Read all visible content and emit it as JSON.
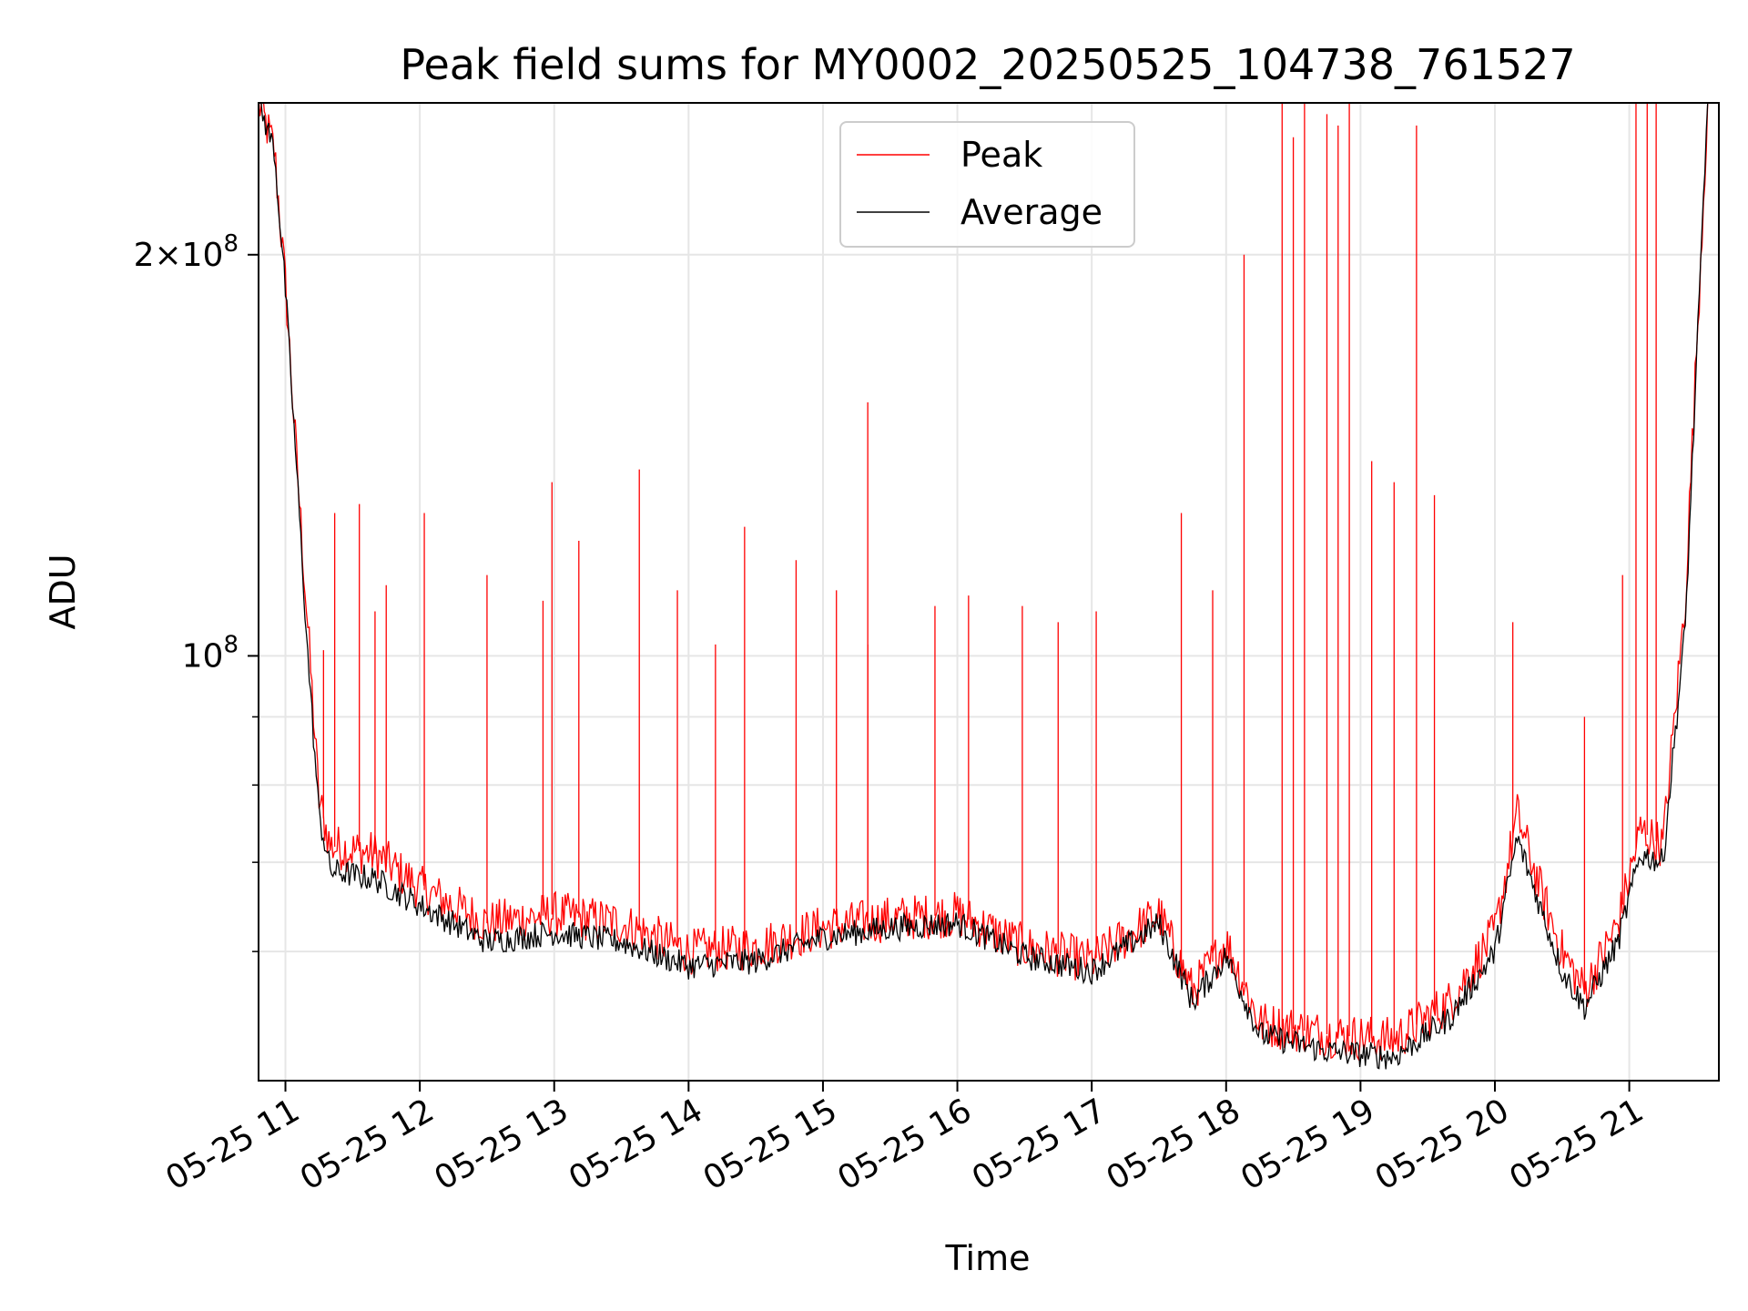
{
  "chart_data": {
    "type": "line",
    "title": "Peak field sums for MY0002_20250525_104738_761527",
    "xlabel": "Time",
    "ylabel": "ADU",
    "y_scale": "log",
    "ylim": [
      48000000,
      260000000
    ],
    "xlim": [
      "2025-05-25 10:48",
      "2025-05-25 21:40"
    ],
    "grid": true,
    "legend_position": "top-center",
    "x_ticks": [
      {
        "value": "2025-05-25 11:00",
        "label": "05-25 11"
      },
      {
        "value": "2025-05-25 12:00",
        "label": "05-25 12"
      },
      {
        "value": "2025-05-25 13:00",
        "label": "05-25 13"
      },
      {
        "value": "2025-05-25 14:00",
        "label": "05-25 14"
      },
      {
        "value": "2025-05-25 15:00",
        "label": "05-25 15"
      },
      {
        "value": "2025-05-25 16:00",
        "label": "05-25 16"
      },
      {
        "value": "2025-05-25 17:00",
        "label": "05-25 17"
      },
      {
        "value": "2025-05-25 18:00",
        "label": "05-25 18"
      },
      {
        "value": "2025-05-25 19:00",
        "label": "05-25 19"
      },
      {
        "value": "2025-05-25 20:00",
        "label": "05-25 20"
      },
      {
        "value": "2025-05-25 21:00",
        "label": "05-25 21"
      }
    ],
    "y_major_ticks": [
      {
        "value": 100000000,
        "mantissa": "",
        "exponent": "8"
      },
      {
        "value": 200000000,
        "mantissa": "2",
        "exponent": "8"
      }
    ],
    "y_minor_ticks": [
      60000000,
      70000000,
      80000000,
      90000000
    ],
    "series": [
      {
        "name": "Peak",
        "color": "#ff0000",
        "points": [
          [
            "2025-05-25 10:48",
            260000000
          ],
          [
            "2025-05-25 10:55",
            240000000
          ],
          [
            "2025-05-25 11:00",
            190000000
          ],
          [
            "2025-05-25 11:05",
            140000000
          ],
          [
            "2025-05-25 11:10",
            105000000
          ],
          [
            "2025-05-25 11:15",
            78000000
          ],
          [
            "2025-05-25 11:20",
            72000000
          ],
          [
            "2025-05-25 11:40",
            71000000
          ],
          [
            "2025-05-25 12:00",
            67000000
          ],
          [
            "2025-05-25 12:30",
            63000000
          ],
          [
            "2025-05-25 13:00",
            64000000
          ],
          [
            "2025-05-25 13:30",
            63000000
          ],
          [
            "2025-05-25 14:00",
            60000000
          ],
          [
            "2025-05-25 14:30",
            60500000
          ],
          [
            "2025-05-25 15:00",
            62500000
          ],
          [
            "2025-05-25 15:30",
            63500000
          ],
          [
            "2025-05-25 16:00",
            64000000
          ],
          [
            "2025-05-25 16:30",
            60500000
          ],
          [
            "2025-05-25 17:00",
            59000000
          ],
          [
            "2025-05-25 17:30",
            64000000
          ],
          [
            "2025-05-25 17:45",
            56000000
          ],
          [
            "2025-05-25 18:00",
            61000000
          ],
          [
            "2025-05-25 18:15",
            53000000
          ],
          [
            "2025-05-25 18:45",
            52000000
          ],
          [
            "2025-05-25 19:15",
            51500000
          ],
          [
            "2025-05-25 19:40",
            55000000
          ],
          [
            "2025-05-25 20:00",
            62000000
          ],
          [
            "2025-05-25 20:10",
            76000000
          ],
          [
            "2025-05-25 20:20",
            67000000
          ],
          [
            "2025-05-25 20:30",
            60000000
          ],
          [
            "2025-05-25 20:40",
            56000000
          ],
          [
            "2025-05-25 20:55",
            63000000
          ],
          [
            "2025-05-25 21:05",
            74000000
          ],
          [
            "2025-05-25 21:15",
            72000000
          ],
          [
            "2025-05-25 21:25",
            110000000
          ],
          [
            "2025-05-25 21:35",
            260000000
          ]
        ]
      },
      {
        "name": "Average",
        "color": "#000000",
        "points": [
          [
            "2025-05-25 10:48",
            260000000
          ],
          [
            "2025-05-25 10:55",
            240000000
          ],
          [
            "2025-05-25 11:00",
            188000000
          ],
          [
            "2025-05-25 11:05",
            138000000
          ],
          [
            "2025-05-25 11:10",
            100000000
          ],
          [
            "2025-05-25 11:15",
            76000000
          ],
          [
            "2025-05-25 11:20",
            69000000
          ],
          [
            "2025-05-25 11:40",
            68000000
          ],
          [
            "2025-05-25 12:00",
            65000000
          ],
          [
            "2025-05-25 12:30",
            61000000
          ],
          [
            "2025-05-25 13:00",
            62000000
          ],
          [
            "2025-05-25 13:30",
            61000000
          ],
          [
            "2025-05-25 14:00",
            58500000
          ],
          [
            "2025-05-25 14:30",
            59000000
          ],
          [
            "2025-05-25 15:00",
            61500000
          ],
          [
            "2025-05-25 15:30",
            62500000
          ],
          [
            "2025-05-25 16:00",
            63000000
          ],
          [
            "2025-05-25 16:30",
            59500000
          ],
          [
            "2025-05-25 17:00",
            58000000
          ],
          [
            "2025-05-25 17:30",
            63000000
          ],
          [
            "2025-05-25 17:45",
            55000000
          ],
          [
            "2025-05-25 18:00",
            59500000
          ],
          [
            "2025-05-25 18:15",
            52000000
          ],
          [
            "2025-05-25 18:45",
            50500000
          ],
          [
            "2025-05-25 19:15",
            50000000
          ],
          [
            "2025-05-25 19:40",
            53500000
          ],
          [
            "2025-05-25 20:00",
            60000000
          ],
          [
            "2025-05-25 20:10",
            73000000
          ],
          [
            "2025-05-25 20:20",
            65000000
          ],
          [
            "2025-05-25 20:30",
            58000000
          ],
          [
            "2025-05-25 20:40",
            54500000
          ],
          [
            "2025-05-25 20:55",
            61000000
          ],
          [
            "2025-05-25 21:05",
            71000000
          ],
          [
            "2025-05-25 21:15",
            70000000
          ],
          [
            "2025-05-25 21:25",
            105000000
          ],
          [
            "2025-05-25 21:35",
            260000000
          ]
        ]
      }
    ],
    "peak_spikes": [
      [
        "2025-05-25 11:17",
        101000000
      ],
      [
        "2025-05-25 11:22",
        128000000
      ],
      [
        "2025-05-25 11:33",
        130000000
      ],
      [
        "2025-05-25 11:40",
        108000000
      ],
      [
        "2025-05-25 11:45",
        113000000
      ],
      [
        "2025-05-25 12:02",
        128000000
      ],
      [
        "2025-05-25 12:30",
        115000000
      ],
      [
        "2025-05-25 12:55",
        110000000
      ],
      [
        "2025-05-25 12:59",
        135000000
      ],
      [
        "2025-05-25 13:11",
        122000000
      ],
      [
        "2025-05-25 13:38",
        138000000
      ],
      [
        "2025-05-25 13:55",
        112000000
      ],
      [
        "2025-05-25 14:12",
        102000000
      ],
      [
        "2025-05-25 14:25",
        125000000
      ],
      [
        "2025-05-25 14:48",
        118000000
      ],
      [
        "2025-05-25 15:06",
        112000000
      ],
      [
        "2025-05-25 15:20",
        102000000
      ],
      [
        "2025-05-25 15:20",
        155000000
      ],
      [
        "2025-05-25 15:50",
        109000000
      ],
      [
        "2025-05-25 16:05",
        111000000
      ],
      [
        "2025-05-25 16:29",
        109000000
      ],
      [
        "2025-05-25 16:45",
        106000000
      ],
      [
        "2025-05-25 17:02",
        108000000
      ],
      [
        "2025-05-25 17:40",
        128000000
      ],
      [
        "2025-05-25 17:54",
        112000000
      ],
      [
        "2025-05-25 18:08",
        200000000
      ],
      [
        "2025-05-25 18:25",
        260000000
      ],
      [
        "2025-05-25 18:30",
        245000000
      ],
      [
        "2025-05-25 18:35",
        260000000
      ],
      [
        "2025-05-25 18:45",
        255000000
      ],
      [
        "2025-05-25 18:50",
        250000000
      ],
      [
        "2025-05-25 18:55",
        260000000
      ],
      [
        "2025-05-25 19:05",
        140000000
      ],
      [
        "2025-05-25 19:15",
        135000000
      ],
      [
        "2025-05-25 19:25",
        250000000
      ],
      [
        "2025-05-25 19:33",
        132000000
      ],
      [
        "2025-05-25 20:08",
        106000000
      ],
      [
        "2025-05-25 20:40",
        90000000
      ],
      [
        "2025-05-25 20:57",
        115000000
      ],
      [
        "2025-05-25 21:03",
        260000000
      ],
      [
        "2025-05-25 21:08",
        260000000
      ],
      [
        "2025-05-25 21:12",
        260000000
      ]
    ]
  },
  "legend": {
    "items": [
      {
        "label": "Peak",
        "color": "#ff0000"
      },
      {
        "label": "Average",
        "color": "#000000"
      }
    ]
  }
}
